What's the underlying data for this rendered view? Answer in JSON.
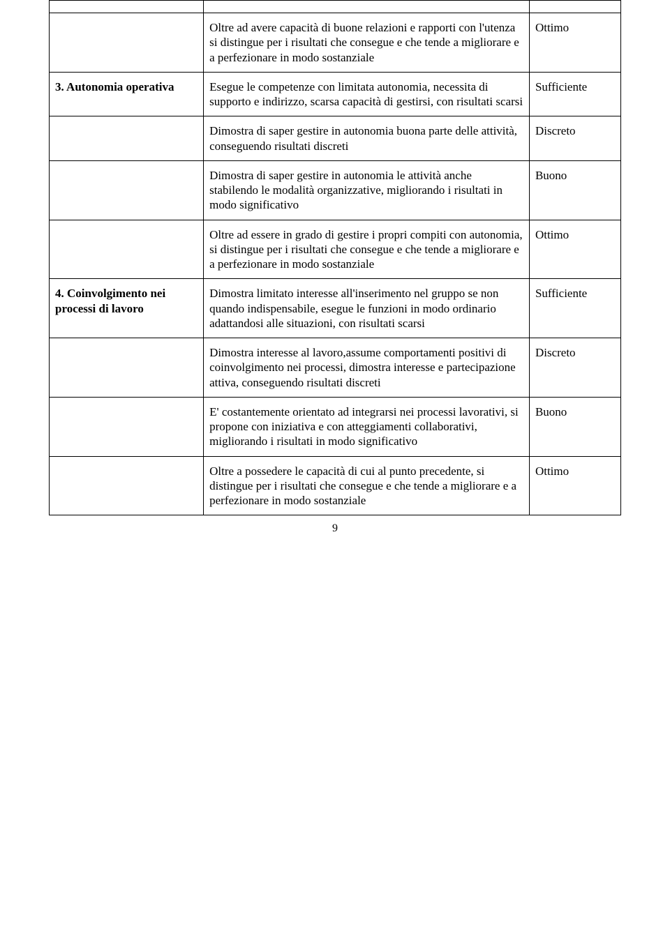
{
  "rows": [
    {
      "label": "",
      "desc": "",
      "rating": "",
      "emptyTop": true
    },
    {
      "label": "",
      "desc": "Oltre ad avere capacità di buone relazioni e rapporti con l'utenza si distingue per i risultati che consegue e che tende a migliorare e a perfezionare in modo sostanziale",
      "rating": "Ottimo"
    },
    {
      "label": "3. Autonomia operativa",
      "desc": "Esegue le competenze con limitata autonomia, necessita di supporto e indirizzo, scarsa capacità di gestirsi, con risultati scarsi",
      "rating": "Sufficiente"
    },
    {
      "label": "",
      "desc": "Dimostra di saper gestire in autonomia buona parte delle attività, conseguendo risultati discreti",
      "rating": "Discreto"
    },
    {
      "label": "",
      "desc": "Dimostra di saper gestire in autonomia le attività anche stabilendo le modalità organizzative, migliorando i risultati in modo significativo",
      "rating": "Buono"
    },
    {
      "label": "",
      "desc": "Oltre ad essere in grado di gestire i propri compiti con autonomia, si distingue per i risultati che consegue e che tende a migliorare e a perfezionare in modo sostanziale",
      "rating": "Ottimo"
    },
    {
      "label": "4. Coinvolgimento nei processi di lavoro",
      "desc": "Dimostra limitato interesse all'inserimento nel gruppo se non quando indispensabile, esegue le funzioni in modo ordinario adattandosi alle situazioni, con risultati scarsi",
      "rating": "Sufficiente"
    },
    {
      "label": "",
      "desc": "Dimostra interesse al lavoro,assume comportamenti positivi di coinvolgimento nei processi, dimostra interesse e partecipazione attiva, conseguendo risultati discreti",
      "rating": "Discreto"
    },
    {
      "label": "",
      "desc": "E' costantemente orientato ad integrarsi nei processi lavorativi, si propone con iniziativa e con atteggiamenti collaborativi, migliorando i risultati in modo significativo",
      "rating": "Buono"
    },
    {
      "label": "",
      "desc": "Oltre a possedere le capacità di cui al punto precedente, si distingue per i risultati che consegue e che tende a migliorare e a perfezionare in modo sostanziale",
      "rating": "Ottimo"
    }
  ],
  "pageNumber": "9"
}
